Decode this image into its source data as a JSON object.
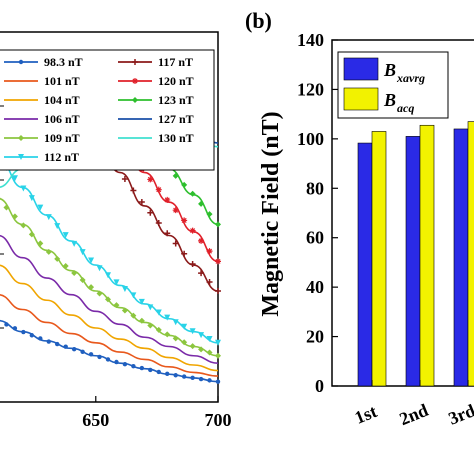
{
  "chart_data": [
    {
      "type": "line",
      "panel_label": "",
      "title": "",
      "xlabel": "",
      "ylabel": "",
      "xlim": [
        610,
        700
      ],
      "x_ticks": [
        "650",
        "700"
      ],
      "x_tick_values": [
        650,
        700
      ],
      "grid": false,
      "legend_position": "top",
      "series": [
        {
          "name": "98.3 nT",
          "color": "#1f5fbf",
          "marker": "dot",
          "x": [
            610,
            620,
            630,
            640,
            650,
            660,
            670,
            680,
            690,
            700
          ],
          "y": [
            0.22,
            0.19,
            0.165,
            0.145,
            0.125,
            0.105,
            0.09,
            0.075,
            0.065,
            0.055
          ]
        },
        {
          "name": "101 nT",
          "color": "#e8581c",
          "marker": "line",
          "x": [
            610,
            620,
            630,
            640,
            650,
            660,
            670,
            680,
            690,
            700
          ],
          "y": [
            0.29,
            0.25,
            0.215,
            0.185,
            0.16,
            0.135,
            0.115,
            0.095,
            0.08,
            0.07
          ]
        },
        {
          "name": "104 nT",
          "color": "#f0a500",
          "marker": "line",
          "x": [
            610,
            620,
            630,
            640,
            650,
            660,
            670,
            680,
            690,
            700
          ],
          "y": [
            0.37,
            0.32,
            0.275,
            0.235,
            0.2,
            0.17,
            0.145,
            0.12,
            0.1,
            0.085
          ]
        },
        {
          "name": "106 nT",
          "color": "#7a2aa8",
          "marker": "line",
          "x": [
            610,
            620,
            630,
            640,
            650,
            660,
            670,
            680,
            690,
            700
          ],
          "y": [
            0.45,
            0.39,
            0.335,
            0.29,
            0.245,
            0.21,
            0.175,
            0.15,
            0.125,
            0.105
          ]
        },
        {
          "name": "109 nT",
          "color": "#8cc63f",
          "marker": "diamond",
          "x": [
            610,
            620,
            630,
            640,
            650,
            660,
            670,
            680,
            690,
            700
          ],
          "y": [
            0.55,
            0.48,
            0.41,
            0.355,
            0.3,
            0.255,
            0.215,
            0.18,
            0.15,
            0.125
          ]
        },
        {
          "name": "112 nT",
          "color": "#29d3e8",
          "marker": "triangle",
          "x": [
            610,
            620,
            630,
            640,
            650,
            660,
            670,
            680,
            690,
            700
          ],
          "y": [
            0.66,
            0.58,
            0.505,
            0.435,
            0.37,
            0.315,
            0.265,
            0.225,
            0.19,
            0.16
          ]
        },
        {
          "name": "117 nT",
          "color": "#8b1a1a",
          "marker": "plus",
          "x": [
            610,
            620,
            630,
            640,
            650,
            660,
            670,
            680,
            690,
            700
          ],
          "y": [
            0.88,
            0.86,
            0.82,
            0.77,
            0.7,
            0.62,
            0.53,
            0.45,
            0.37,
            0.3
          ]
        },
        {
          "name": "120 nT",
          "color": "#e0202a",
          "marker": "star",
          "x": [
            610,
            620,
            630,
            640,
            650,
            660,
            670,
            680,
            690,
            700
          ],
          "y": [
            0.87,
            0.87,
            0.85,
            0.82,
            0.76,
            0.7,
            0.62,
            0.54,
            0.46,
            0.38
          ]
        },
        {
          "name": "123 nT",
          "color": "#2ebf2e",
          "marker": "diamond",
          "x": [
            610,
            620,
            630,
            640,
            650,
            660,
            670,
            680,
            690,
            700
          ],
          "y": [
            0.82,
            0.84,
            0.84,
            0.83,
            0.8,
            0.76,
            0.7,
            0.63,
            0.56,
            0.48
          ]
        },
        {
          "name": "127 nT",
          "color": "#1a4fa8",
          "marker": "line",
          "x": [
            610,
            620,
            630,
            640,
            650,
            660,
            670,
            680,
            690,
            700
          ],
          "y": [
            0.7,
            0.74,
            0.77,
            0.79,
            0.8,
            0.8,
            0.79,
            0.77,
            0.74,
            0.7
          ]
        },
        {
          "name": "130 nT",
          "color": "#40e0d0",
          "marker": "line",
          "x": [
            610,
            620,
            630,
            640,
            650,
            660,
            670,
            680,
            690,
            700
          ],
          "y": [
            0.58,
            0.63,
            0.67,
            0.71,
            0.73,
            0.75,
            0.75,
            0.74,
            0.72,
            0.69
          ]
        }
      ]
    },
    {
      "type": "bar",
      "panel_label": "(b)",
      "title": "",
      "xlabel": "",
      "ylabel": "Magnetic Field (nT)",
      "ylim": [
        0,
        140
      ],
      "y_ticks": [
        "0",
        "20",
        "40",
        "60",
        "80",
        "100",
        "120",
        "140"
      ],
      "categories": [
        "1st",
        "2nd",
        "3rd"
      ],
      "grid": false,
      "legend_position": "top-left",
      "series": [
        {
          "name": "B",
          "subscript": "xavrg",
          "color": "#2a2ae6",
          "values": [
            98.3,
            101,
            104
          ]
        },
        {
          "name": "B",
          "subscript": "acq",
          "color": "#f2f200",
          "values": [
            103,
            105.5,
            107
          ]
        }
      ]
    }
  ]
}
